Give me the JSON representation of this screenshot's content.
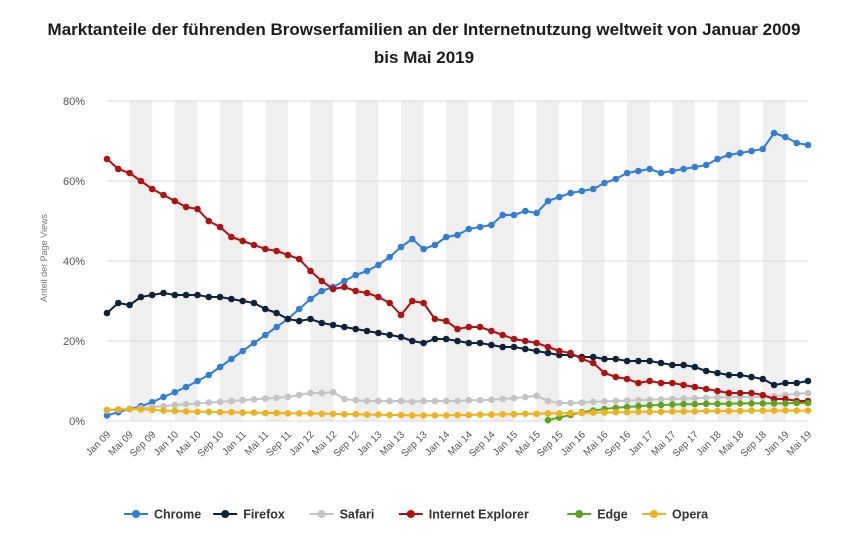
{
  "chart_data": {
    "type": "line",
    "title": "Marktanteile der führenden Browserfamilien an der Internetnutzung weltweit von Januar 2009 bis Mai 2019",
    "xlabel": "",
    "ylabel": "Anteil der Page Views",
    "ylim": [
      0,
      80
    ],
    "yticks": [
      "0%",
      "20%",
      "40%",
      "60%",
      "80%"
    ],
    "ytick_values": [
      0,
      20,
      40,
      60,
      80
    ],
    "grid": true,
    "legend_position": "bottom-center",
    "x_tick_labels": [
      "Jan 09",
      "Mai 09",
      "Sep 09",
      "Jan 10",
      "Mai 10",
      "Sep 10",
      "Jan 11",
      "Mai 11",
      "Sep 11",
      "Jan 12",
      "Mai 12",
      "Sep 12",
      "Jan 13",
      "Mai 13",
      "Sep 13",
      "Jan 14",
      "Mai 14",
      "Sep 14",
      "Jan 15",
      "Mai 15",
      "Sep 15",
      "Jan 16",
      "Mai 16",
      "Sep 16",
      "Jan 17",
      "Mai 17",
      "Sep 17",
      "Jan 18",
      "Mai 18",
      "Sep 18",
      "Jan 19",
      "Mai 19"
    ],
    "n_points": 63,
    "x_step_months": 2,
    "series": [
      {
        "name": "Chrome",
        "color": "#2f7ed8",
        "start_index": 0,
        "values": [
          1.4,
          2.2,
          3.0,
          3.7,
          4.7,
          6.0,
          7.2,
          8.5,
          10.0,
          11.5,
          13.5,
          15.5,
          17.5,
          19.5,
          21.5,
          23.5,
          25.5,
          28.0,
          30.5,
          32.5,
          33.5,
          35.0,
          36.5,
          37.5,
          39.0,
          41.0,
          43.5,
          45.5,
          43.0,
          44.0,
          46.0,
          46.5,
          48.0,
          48.5,
          49.0,
          51.5,
          51.5,
          52.5,
          52.0,
          55.0,
          56.0,
          57.0,
          57.5,
          58.0,
          59.5,
          60.5,
          62.0,
          62.5,
          63.0,
          62.0,
          62.5,
          63.0,
          63.5,
          64.0,
          65.5,
          66.5,
          67.0,
          67.5,
          68.0,
          72.0,
          71.0,
          69.5,
          69.0
        ]
      },
      {
        "name": "Firefox",
        "color": "#0d233a",
        "start_index": 0,
        "values": [
          27.0,
          29.5,
          29.0,
          31.0,
          31.5,
          32.0,
          31.5,
          31.5,
          31.5,
          31.0,
          31.0,
          30.5,
          30.0,
          29.5,
          28.0,
          27.0,
          25.5,
          25.0,
          25.5,
          24.5,
          24.0,
          23.5,
          23.0,
          22.5,
          22.0,
          21.5,
          21.0,
          20.0,
          19.5,
          20.5,
          20.5,
          20.0,
          19.5,
          19.5,
          19.0,
          18.5,
          18.5,
          18.0,
          17.5,
          17.0,
          16.5,
          16.5,
          16.0,
          16.0,
          15.5,
          15.5,
          15.0,
          15.0,
          15.0,
          14.5,
          14.0,
          14.0,
          13.5,
          12.5,
          12.0,
          11.5,
          11.5,
          11.0,
          10.5,
          9.0,
          9.5,
          9.5,
          10.0
        ]
      },
      {
        "name": "Safari",
        "color": "#c4c4c4",
        "start_index": 0,
        "values": [
          2.6,
          2.8,
          3.0,
          3.2,
          3.5,
          3.7,
          4.0,
          4.2,
          4.4,
          4.6,
          4.8,
          5.0,
          5.2,
          5.4,
          5.6,
          5.8,
          6.0,
          6.5,
          7.0,
          7.0,
          7.2,
          5.5,
          5.2,
          5.0,
          5.0,
          5.0,
          5.0,
          4.8,
          5.0,
          5.0,
          5.0,
          5.0,
          5.2,
          5.2,
          5.3,
          5.5,
          5.7,
          6.0,
          6.3,
          5.0,
          4.5,
          4.5,
          4.6,
          4.8,
          4.9,
          5.0,
          5.1,
          5.2,
          5.3,
          5.4,
          5.5,
          5.6,
          5.7,
          5.8,
          5.9,
          6.0,
          6.0,
          6.0,
          6.0,
          6.2,
          6.5,
          6.8,
          7.0
        ]
      },
      {
        "name": "Internet Explorer",
        "color": "#b50f0f",
        "start_index": 0,
        "values": [
          65.5,
          63.0,
          62.0,
          60.0,
          58.0,
          56.5,
          55.0,
          53.5,
          53.0,
          50.0,
          48.5,
          46.0,
          45.0,
          44.0,
          43.0,
          42.5,
          41.5,
          40.5,
          37.5,
          35.0,
          33.0,
          33.5,
          32.5,
          32.0,
          31.0,
          29.5,
          26.5,
          30.0,
          29.5,
          25.5,
          25.0,
          23.0,
          23.5,
          23.5,
          22.5,
          21.5,
          20.5,
          20.0,
          19.5,
          18.5,
          17.5,
          17.0,
          15.5,
          14.5,
          12.0,
          11.0,
          10.5,
          9.5,
          10.0,
          9.5,
          9.5,
          9.0,
          8.5,
          8.0,
          7.5,
          7.0,
          7.0,
          7.0,
          6.5,
          5.5,
          5.5,
          5.0,
          5.0
        ]
      },
      {
        "name": "Edge",
        "color": "#5ea51f",
        "start_index": 39,
        "values": [
          0.2,
          0.9,
          1.5,
          2.2,
          2.6,
          3.0,
          3.3,
          3.5,
          3.7,
          3.9,
          4.0,
          4.1,
          4.2,
          4.2,
          4.3,
          4.3,
          4.3,
          4.4,
          4.4,
          4.4,
          4.4,
          4.4,
          4.5,
          4.5
        ]
      },
      {
        "name": "Opera",
        "color": "#efb21a",
        "start_index": 0,
        "values": [
          2.8,
          2.9,
          3.0,
          2.9,
          2.8,
          2.6,
          2.5,
          2.4,
          2.3,
          2.3,
          2.2,
          2.2,
          2.1,
          2.1,
          2.0,
          2.0,
          1.9,
          1.9,
          1.9,
          1.8,
          1.8,
          1.7,
          1.7,
          1.6,
          1.6,
          1.5,
          1.5,
          1.4,
          1.4,
          1.4,
          1.4,
          1.5,
          1.5,
          1.6,
          1.6,
          1.7,
          1.7,
          1.8,
          1.8,
          1.9,
          1.9,
          2.0,
          2.0,
          2.1,
          2.1,
          2.2,
          2.2,
          2.3,
          2.3,
          2.3,
          2.4,
          2.4,
          2.4,
          2.5,
          2.5,
          2.5,
          2.5,
          2.6,
          2.6,
          2.6,
          2.6,
          2.6,
          2.6
        ]
      }
    ]
  },
  "colors": {
    "grid": "#d8d8d8",
    "band": "#efefef",
    "axis_text": "#555555"
  }
}
